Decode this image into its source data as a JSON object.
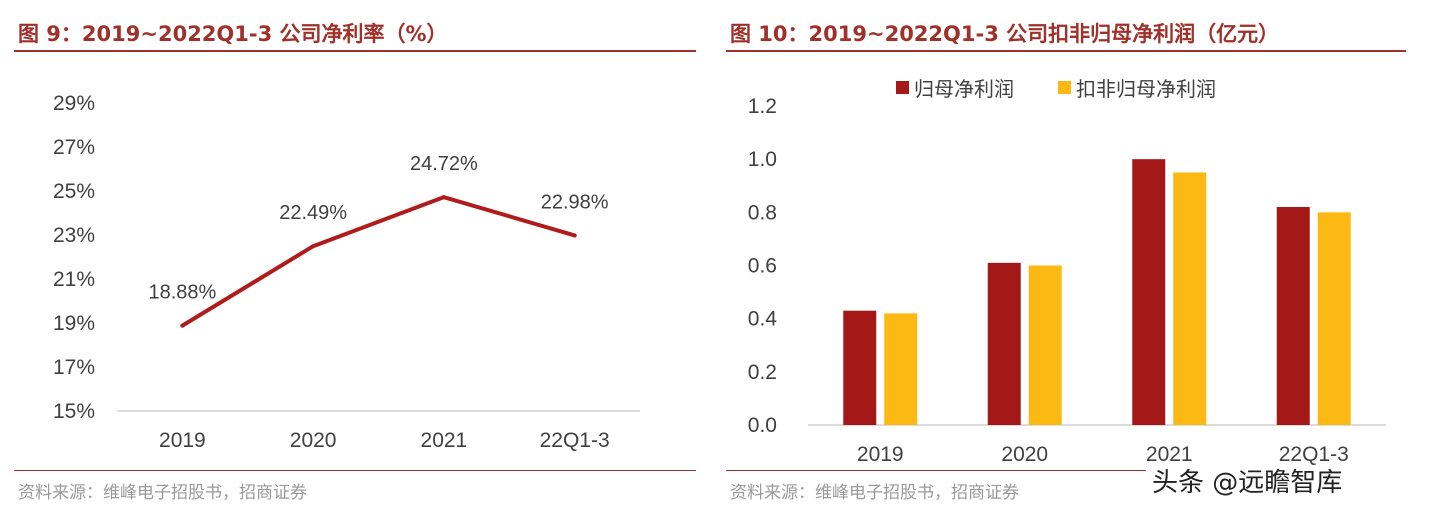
{
  "colors": {
    "accent": "#a0302a",
    "line": "#b01c1c",
    "series_red": "#a51818",
    "series_gold": "#fdb913",
    "axis_text": "#404040",
    "source_text": "#9a9a9a"
  },
  "left_panel": {
    "title": "图 9：2019~2022Q1-3 公司净利率（%）",
    "source": "资料来源：维峰电子招股书，招商证券"
  },
  "right_panel": {
    "title": "图 10：2019~2022Q1-3 公司扣非归母净利润（亿元）",
    "source": "资料来源：维峰电子招股书，招商证券"
  },
  "watermark": "头条 @远瞻智库",
  "chart_data": [
    {
      "type": "line",
      "title": "2019~2022Q1-3 公司净利率（%）",
      "categories": [
        "2019",
        "2020",
        "2021",
        "22Q1-3"
      ],
      "values": [
        18.88,
        22.49,
        24.72,
        22.98
      ],
      "value_labels": [
        "18.88%",
        "22.49%",
        "24.72%",
        "22.98%"
      ],
      "ylim": [
        15,
        29
      ],
      "yticks": [
        "15%",
        "17%",
        "19%",
        "21%",
        "23%",
        "25%",
        "27%",
        "29%"
      ],
      "grid": false
    },
    {
      "type": "bar",
      "title": "2019~2022Q1-3 公司扣非归母净利润（亿元）",
      "categories": [
        "2019",
        "2020",
        "2021",
        "22Q1-3"
      ],
      "series": [
        {
          "name": "归母净利润",
          "values": [
            0.43,
            0.61,
            1.0,
            0.82
          ]
        },
        {
          "name": "扣非归母净利润",
          "values": [
            0.42,
            0.6,
            0.95,
            0.8
          ]
        }
      ],
      "ylim": [
        0,
        1.2
      ],
      "yticks": [
        "0.0",
        "0.2",
        "0.4",
        "0.6",
        "0.8",
        "1.0",
        "1.2"
      ],
      "legend": "top-center",
      "grid": false
    }
  ]
}
